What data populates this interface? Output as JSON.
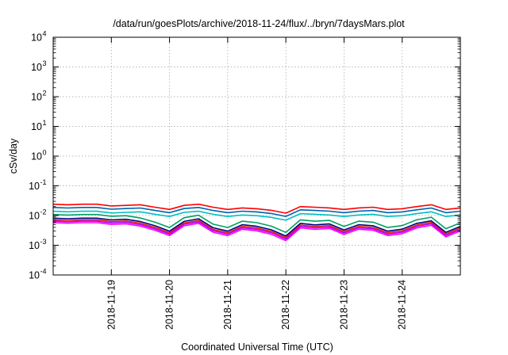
{
  "chart_data": {
    "type": "line",
    "title": "/data/run/goesPlots/archive/2018-11-24/flux/../bryn/7daysMars.plot",
    "xlabel": "Coordinated Universal Time (UTC)",
    "ylabel": "cSv/day",
    "yscale": "log",
    "ylim": [
      "1e-4",
      "1e4"
    ],
    "xlim": [
      "2018-11-18T00:00",
      "2018-11-25T00:00"
    ],
    "grid": true,
    "legend": "none",
    "ytick_labels": [
      {
        "base": "10",
        "exp": "-4"
      },
      {
        "base": "10",
        "exp": "-3"
      },
      {
        "base": "10",
        "exp": "-2"
      },
      {
        "base": "10",
        "exp": "-1"
      },
      {
        "base": "10",
        "exp": "0"
      },
      {
        "base": "10",
        "exp": "1"
      },
      {
        "base": "10",
        "exp": "2"
      },
      {
        "base": "10",
        "exp": "3"
      },
      {
        "base": "10",
        "exp": "4"
      }
    ],
    "xticks": [
      "2018-11-19",
      "2018-11-20",
      "2018-11-21",
      "2018-11-22",
      "2018-11-23",
      "2018-11-24"
    ],
    "series": [
      {
        "color": "#ff0000",
        "scale": 1.0
      },
      {
        "color": "#0060ad",
        "scale": 0.78
      },
      {
        "color": "#00c0c0",
        "scale": 0.58
      },
      {
        "color": "#00a060",
        "scale": 0.45
      },
      {
        "color": "#000080",
        "scale": 0.34
      },
      {
        "color": "#e51e10",
        "scale": 0.3
      },
      {
        "color": "#b000ff",
        "scale": 0.27
      },
      {
        "color": "#ff00ff",
        "scale": 0.24
      }
    ],
    "x": [
      "2018-11-18T00:00",
      "2018-11-18T06:00",
      "2018-11-18T12:00",
      "2018-11-18T18:00",
      "2018-11-19T00:00",
      "2018-11-19T06:00",
      "2018-11-19T12:00",
      "2018-11-19T18:00",
      "2018-11-20T00:00",
      "2018-11-20T06:00",
      "2018-11-20T12:00",
      "2018-11-20T18:00",
      "2018-11-21T00:00",
      "2018-11-21T06:00",
      "2018-11-21T12:00",
      "2018-11-21T18:00",
      "2018-11-22T00:00",
      "2018-11-22T06:00",
      "2018-11-22T12:00",
      "2018-11-22T18:00",
      "2018-11-23T00:00",
      "2018-11-23T06:00",
      "2018-11-23T12:00",
      "2018-11-23T18:00",
      "2018-11-24T00:00",
      "2018-11-24T06:00",
      "2018-11-24T12:00",
      "2018-11-24T18:00",
      "2018-11-25T00:00"
    ],
    "base_values": [
      0.024,
      0.023,
      0.024,
      0.024,
      0.021,
      0.022,
      0.023,
      0.019,
      0.016,
      0.022,
      0.024,
      0.019,
      0.016,
      0.018,
      0.017,
      0.015,
      0.012,
      0.02,
      0.019,
      0.018,
      0.016,
      0.018,
      0.019,
      0.016,
      0.017,
      0.02,
      0.023,
      0.016,
      0.018
    ]
  }
}
